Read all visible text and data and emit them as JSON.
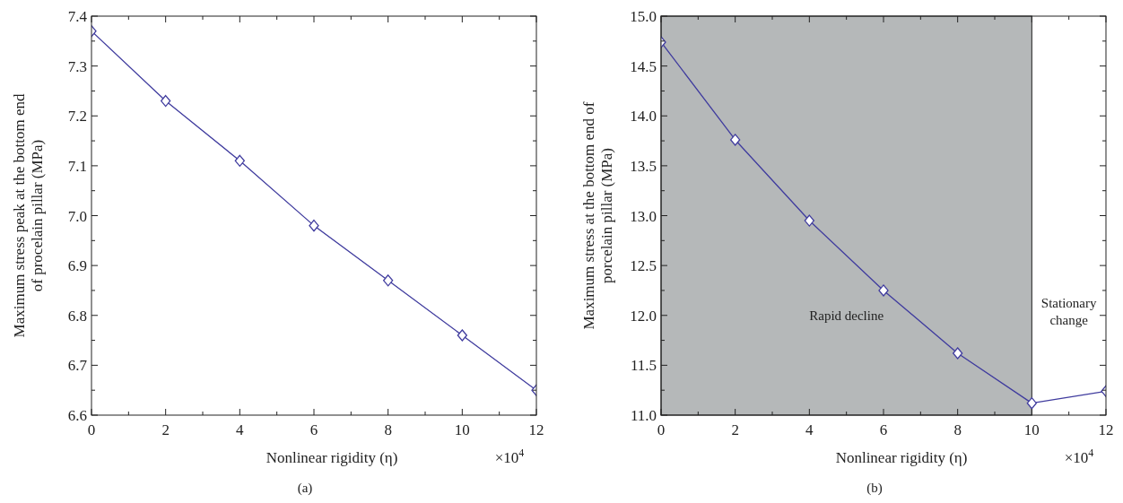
{
  "chart_data": [
    {
      "type": "line",
      "xlabel": "Nonlinear rigidity (η)",
      "ylabel": "Maximum stress peak at the bottom end of procelain pillar (MPa)",
      "x": [
        0,
        2,
        4,
        6,
        8,
        10,
        12
      ],
      "series": [
        {
          "color": "#3f3b9e",
          "values": [
            7.37,
            7.23,
            7.11,
            6.98,
            6.87,
            6.76,
            6.65
          ]
        }
      ],
      "xlim": [
        0,
        12
      ],
      "xticks": [
        0,
        {
          "value": 1,
          "label": null
        },
        2,
        {
          "value": 3,
          "label": null
        },
        4,
        {
          "value": 5,
          "label": null
        },
        6,
        {
          "value": 7,
          "label": null
        },
        8,
        {
          "value": 9,
          "label": null
        },
        10,
        {
          "value": 11,
          "label": null
        },
        12
      ],
      "ylim": [
        6.6,
        7.4
      ],
      "yticks": [
        {
          "value": 6.6,
          "label": "6.6"
        },
        {
          "value": 6.65,
          "label": null
        },
        {
          "value": 6.7,
          "label": "6.7"
        },
        {
          "value": 6.75,
          "label": null
        },
        {
          "value": 6.8,
          "label": "6.8"
        },
        {
          "value": 6.85,
          "label": null
        },
        {
          "value": 6.9,
          "label": "6.9"
        },
        {
          "value": 6.95,
          "label": null
        },
        {
          "value": 7.0,
          "label": "7.0"
        },
        {
          "value": 7.05,
          "label": null
        },
        {
          "value": 7.1,
          "label": "7.1"
        },
        {
          "value": 7.15,
          "label": null
        },
        {
          "value": 7.2,
          "label": "7.2"
        },
        {
          "value": 7.25,
          "label": null
        },
        {
          "value": 7.3,
          "label": "7.3"
        },
        {
          "value": 7.35,
          "label": null
        },
        {
          "value": 7.4,
          "label": "7.4"
        }
      ],
      "marker": "diamond",
      "line_style": "solid",
      "grid": false,
      "annotations": [
        "×10$^{4}$",
        "(a)"
      ]
    },
    {
      "type": "line",
      "xlabel": "Nonlinear rigidity (η)",
      "ylabel": "Maximum stress at the bottom end of porcelain pillar (MPa)",
      "x": [
        0,
        2,
        4,
        6,
        8,
        10,
        12
      ],
      "series": [
        {
          "color": "#3f3b9e",
          "values": [
            14.74,
            13.76,
            12.95,
            12.25,
            11.62,
            11.12,
            11.24
          ]
        }
      ],
      "xlim": [
        0,
        12
      ],
      "xticks": [
        0,
        {
          "value": 1,
          "label": null
        },
        2,
        {
          "value": 3,
          "label": null
        },
        4,
        {
          "value": 5,
          "label": null
        },
        6,
        {
          "value": 7,
          "label": null
        },
        8,
        {
          "value": 9,
          "label": null
        },
        10,
        {
          "value": 11,
          "label": null
        },
        12
      ],
      "ylim": [
        11,
        15
      ],
      "yticks": [
        {
          "value": 11,
          "label": "11.0"
        },
        {
          "value": 11.25,
          "label": null
        },
        {
          "value": 11.5,
          "label": "11.5"
        },
        {
          "value": 11.75,
          "label": null
        },
        {
          "value": 12,
          "label": "12.0"
        },
        {
          "value": 12.25,
          "label": null
        },
        {
          "value": 12.5,
          "label": "12.5"
        },
        {
          "value": 12.75,
          "label": null
        },
        {
          "value": 13,
          "label": "13.0"
        },
        {
          "value": 13.25,
          "label": null
        },
        {
          "value": 13.5,
          "label": "13.5"
        },
        {
          "value": 13.75,
          "label": null
        },
        {
          "value": 14,
          "label": "14.0"
        },
        {
          "value": 14.25,
          "label": null
        },
        {
          "value": 14.5,
          "label": "14.5"
        },
        {
          "value": 14.75,
          "label": null
        },
        {
          "value": 15,
          "label": "15.0"
        }
      ],
      "bands": [
        {
          "axis": "x",
          "from": 0,
          "to": 10,
          "label": "Rapid decline",
          "color": "#b5b8b9"
        }
      ],
      "marker": "diamond",
      "line_style": "solid",
      "grid": false,
      "annotations": [
        "×10$^{4}$",
        "(b)",
        "Stationary change"
      ]
    }
  ]
}
